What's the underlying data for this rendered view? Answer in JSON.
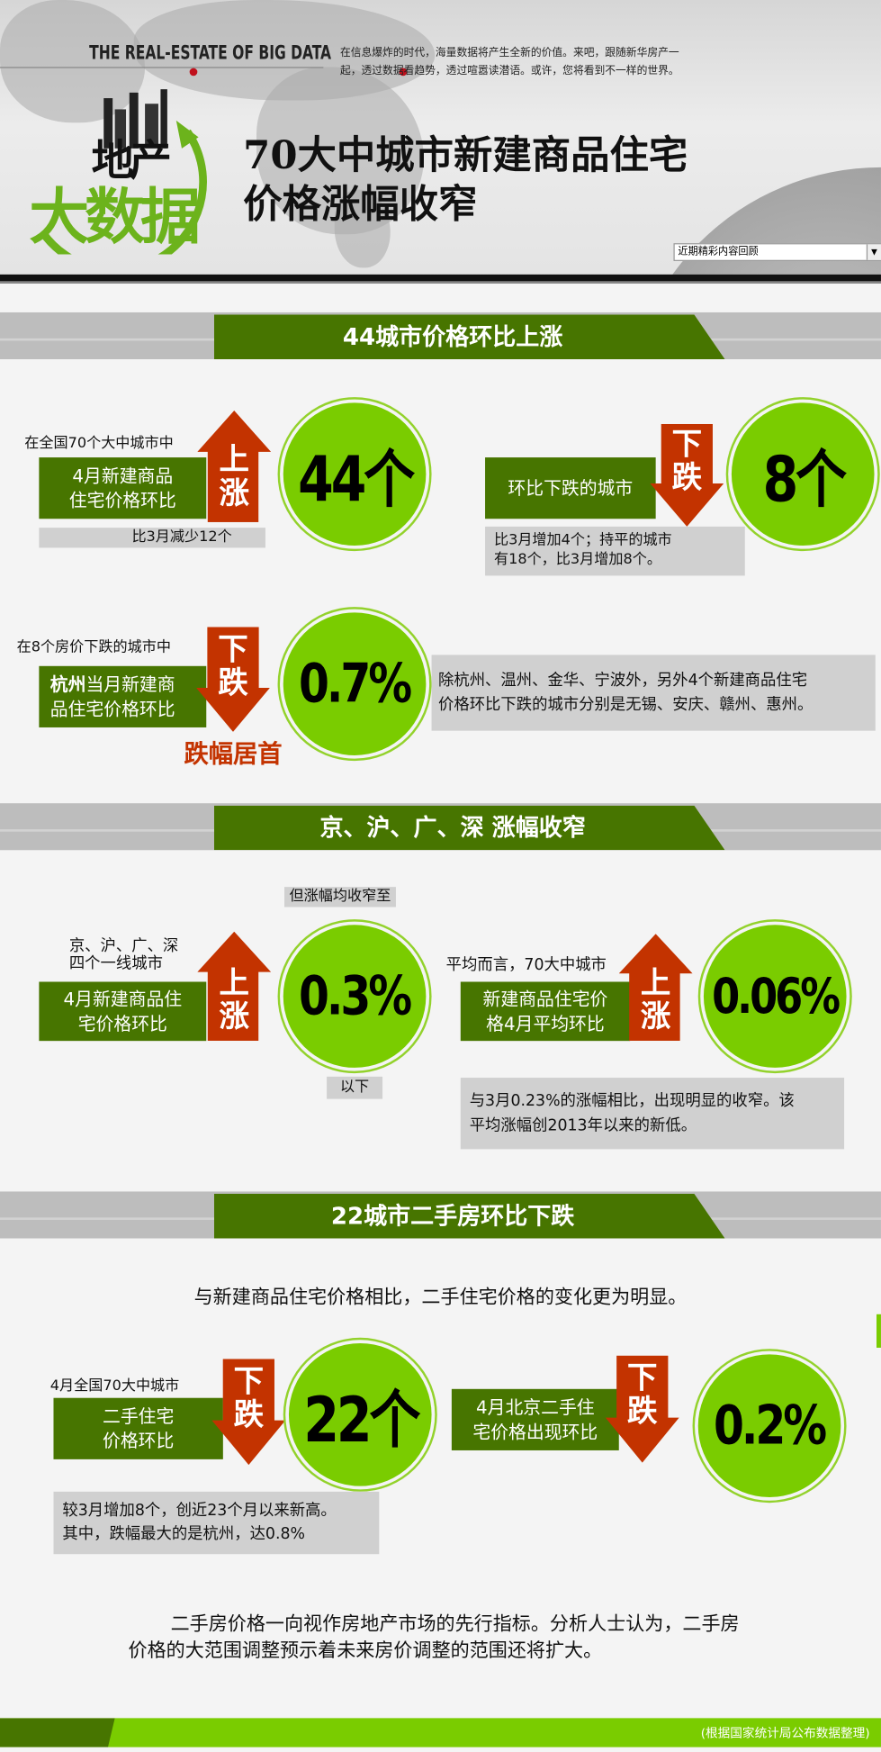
{
  "header": {
    "tagline": "THE  REAL-ESTATE OF BIG DATA",
    "description": [
      "在信息爆炸的时代，海量数据将产生全新的价值。来吧，跟随新华房产一",
      "起，透过数据看趋势，透过喧嚣读潜语。或许，您将看到不一样的世界。"
    ],
    "logo": {
      "top": "地产",
      "bottom": "大数据"
    },
    "title_line1": "70大中城市新建商品住宅",
    "title_line2": "价格涨幅收窄",
    "dropdown": {
      "selected": "近期精彩内容回顾",
      "icon": "chevron-down-icon"
    }
  },
  "colors": {
    "dark_green": "#477500",
    "light_green": "#7acc00",
    "red": "#c33300",
    "grey_box": "#d0d0d0"
  },
  "section1": {
    "title": "44城市价格环比上涨",
    "block1": {
      "intro": "在全国70个大中城市中",
      "label": [
        "4月新建商品",
        "住宅价格环比"
      ],
      "arrow": [
        "上",
        "涨"
      ],
      "note": "比3月减少12个",
      "value": "44个"
    },
    "block2": {
      "label": "环比下跌的城市",
      "arrow": [
        "下",
        "跌"
      ],
      "note": [
        "比3月增加4个；持平的城市",
        "有18个，比3月增加8个。"
      ],
      "value": "8个"
    },
    "block3": {
      "intro": "在8个房价下跌的城市中",
      "label_bold": "杭州",
      "label_rest1": "当月新建商",
      "label_line2": "品住宅价格环比",
      "arrow": [
        "下",
        "跌"
      ],
      "emphasis": "跌幅居首",
      "value": "0.7%",
      "note": [
        "除杭州、温州、金华、宁波外，另外4个新建商品住宅",
        "价格环比下跌的城市分别是无锡、安庆、赣州、惠州。"
      ]
    }
  },
  "section2": {
    "title": "京、沪、广、深 涨幅收窄",
    "block1": {
      "top_note": "但涨幅均收窄至",
      "intro": [
        "京、沪、广、深",
        "四个一线城市"
      ],
      "label": [
        "4月新建商品住",
        "宅价格环比"
      ],
      "arrow": [
        "上",
        "涨"
      ],
      "value": "0.3%",
      "bottom_note": "以下"
    },
    "block2": {
      "intro": "平均而言，70大中城市",
      "label": [
        "新建商品住宅价",
        "格4月平均环比"
      ],
      "arrow": [
        "上",
        "涨"
      ],
      "value": "0.06%",
      "note": [
        "与3月0.23%的涨幅相比，出现明显的收窄。该",
        "平均涨幅创2013年以来的新低。"
      ]
    }
  },
  "section3": {
    "title": "22城市二手房环比下跌",
    "lead": "与新建商品住宅价格相比，二手住宅价格的变化更为明显。",
    "block1": {
      "intro": "4月全国70大中城市",
      "label": [
        "二手住宅",
        "价格环比"
      ],
      "arrow": [
        "下",
        "跌"
      ],
      "value": "22个",
      "note": [
        "较3月增加8个，创近23个月以来新高。",
        "其中，跌幅最大的是杭州，达0.8%"
      ]
    },
    "block2": {
      "label": [
        "4月北京二手住",
        "宅价格出现环比"
      ],
      "arrow": [
        "下",
        "跌"
      ],
      "value": "0.2%"
    },
    "conclusion": [
      "二手房价格一向视作房地产市场的先行指标。分析人士认为，二手房",
      "价格的大范围调整预示着未来房价调整的范围还将扩大。"
    ]
  },
  "footer": {
    "source": "(根据国家统计局公布数据整理)"
  }
}
